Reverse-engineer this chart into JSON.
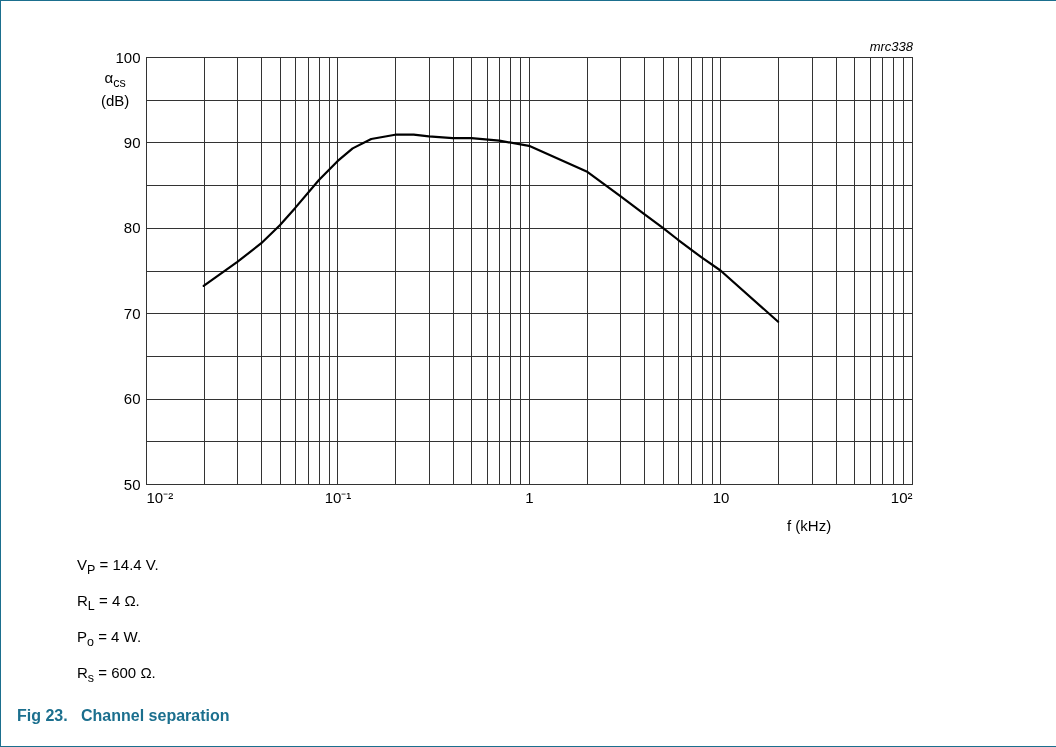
{
  "chart_data": {
    "type": "line",
    "title": "Fig 23.   Channel separation",
    "xlabel": "f (kHz)",
    "ylabel": "α$_{cs}$\n(dB)",
    "annotations": [
      "mrc338",
      "V$_{P}$ = 14.4 V.",
      "R$_{L}$ = 4 Ω.",
      "P$_{o}$ = 4 W.",
      "R$_{s}$ = 600 Ω."
    ],
    "log": "x",
    "grid": true,
    "xlim": [
      0.01,
      100
    ],
    "ylim": [
      50,
      100
    ],
    "xticks": [
      {
        "value": 0.01,
        "label": "10⁻²"
      },
      {
        "value": 0.02,
        "label": null
      },
      {
        "value": 0.03,
        "label": null
      },
      {
        "value": 0.04,
        "label": null
      },
      {
        "value": 0.05,
        "label": null
      },
      {
        "value": 0.06,
        "label": null
      },
      {
        "value": 0.07,
        "label": null
      },
      {
        "value": 0.08,
        "label": null
      },
      {
        "value": 0.09,
        "label": null
      },
      {
        "value": 0.1,
        "label": "10⁻¹"
      },
      {
        "value": 0.2,
        "label": null
      },
      {
        "value": 0.3,
        "label": null
      },
      {
        "value": 0.4,
        "label": null
      },
      {
        "value": 0.5,
        "label": null
      },
      {
        "value": 0.6,
        "label": null
      },
      {
        "value": 0.7,
        "label": null
      },
      {
        "value": 0.8,
        "label": null
      },
      {
        "value": 0.9,
        "label": null
      },
      1,
      {
        "value": 2,
        "label": null
      },
      {
        "value": 3,
        "label": null
      },
      {
        "value": 4,
        "label": null
      },
      {
        "value": 5,
        "label": null
      },
      {
        "value": 6,
        "label": null
      },
      {
        "value": 7,
        "label": null
      },
      {
        "value": 8,
        "label": null
      },
      {
        "value": 9,
        "label": null
      },
      10,
      {
        "value": 20,
        "label": null
      },
      {
        "value": 30,
        "label": null
      },
      {
        "value": 40,
        "label": null
      },
      {
        "value": 50,
        "label": null
      },
      {
        "value": 60,
        "label": null
      },
      {
        "value": 70,
        "label": null
      },
      {
        "value": 80,
        "label": null
      },
      {
        "value": 90,
        "label": null
      },
      {
        "value": 100,
        "label": "10²"
      }
    ],
    "yticks": [
      50,
      {
        "value": 55,
        "label": null
      },
      60,
      {
        "value": 65,
        "label": null
      },
      70,
      {
        "value": 75,
        "label": null
      },
      80,
      {
        "value": 85,
        "label": null
      },
      90,
      {
        "value": 95,
        "label": null
      },
      100
    ],
    "series": [
      {
        "color": "#000000",
        "x": [
          0.02,
          0.03,
          0.04,
          0.05,
          0.06,
          0.08,
          0.1,
          0.12,
          0.15,
          0.2,
          0.25,
          0.3,
          0.4,
          0.5,
          0.7,
          1,
          2,
          3,
          4,
          5,
          6,
          8,
          10,
          20
        ],
        "values": [
          73.2,
          76,
          78.2,
          80.3,
          82.3,
          85.6,
          87.8,
          89.3,
          90.4,
          90.9,
          90.9,
          90.7,
          90.5,
          90.5,
          90.2,
          89.6,
          86.6,
          83.7,
          81.6,
          80,
          78.6,
          76.5,
          75,
          69
        ]
      }
    ]
  }
}
